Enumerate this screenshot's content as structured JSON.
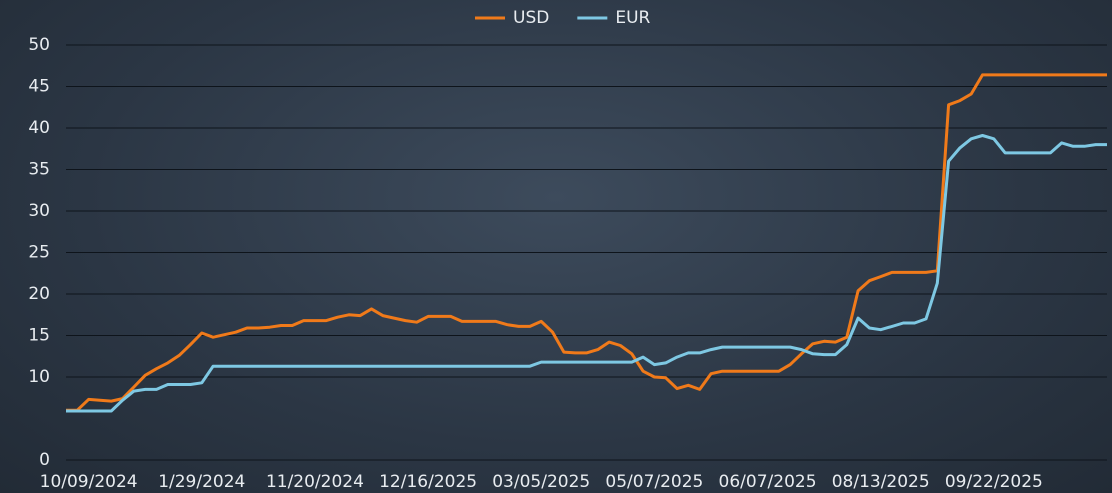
{
  "chart_data": {
    "type": "line",
    "categories": [
      null,
      null,
      "10/09/2024",
      null,
      null,
      null,
      null,
      null,
      null,
      null,
      null,
      null,
      "1/29/2024",
      null,
      null,
      null,
      null,
      null,
      null,
      null,
      null,
      null,
      "11/20/2024",
      null,
      null,
      null,
      null,
      null,
      null,
      null,
      null,
      null,
      "12/16/2025",
      null,
      null,
      null,
      null,
      null,
      null,
      null,
      null,
      null,
      "03/05/2025",
      null,
      null,
      null,
      null,
      null,
      null,
      null,
      null,
      null,
      "05/07/2025",
      null,
      null,
      null,
      null,
      null,
      null,
      null,
      null,
      null,
      "06/07/2025",
      null,
      null,
      null,
      null,
      null,
      null,
      null,
      null,
      null,
      "08/13/2025",
      null,
      null,
      null,
      null,
      null,
      null,
      null,
      null,
      null,
      "09/22/2025",
      null,
      null,
      null,
      null,
      null,
      null,
      null,
      null,
      null,
      null
    ],
    "series": [
      {
        "name": "USD",
        "color": "#f07a1a",
        "values": [
          6,
          6,
          7.3,
          7.2,
          7.1,
          7.4,
          8.8,
          10.2,
          11,
          11.7,
          12.6,
          13.9,
          15.3,
          14.8,
          15.1,
          15.4,
          15.9,
          15.9,
          16,
          16.2,
          16.2,
          16.8,
          16.8,
          16.8,
          17.2,
          17.5,
          17.4,
          18.2,
          17.4,
          17.1,
          16.8,
          16.6,
          17.3,
          17.3,
          17.3,
          16.7,
          16.7,
          16.7,
          16.7,
          16.3,
          16.1,
          16.1,
          16.7,
          15.4,
          13,
          12.9,
          12.9,
          13.3,
          14.2,
          13.8,
          12.8,
          10.7,
          10,
          9.9,
          8.6,
          9,
          8.5,
          10.4,
          10.7,
          10.7,
          10.7,
          10.7,
          10.7,
          10.7,
          11.5,
          12.8,
          14,
          14.3,
          14.2,
          14.8,
          20.4,
          21.6,
          22.1,
          22.6,
          22.6,
          22.6,
          22.6,
          22.8,
          42.8,
          43.3,
          44.1,
          46.4,
          46.4,
          46.4,
          46.4,
          46.4,
          46.4,
          46.4,
          46.4,
          46.4,
          46.4,
          46.4,
          46.4
        ]
      },
      {
        "name": "EUR",
        "color": "#7ec8e3",
        "values": [
          5.9,
          5.9,
          5.9,
          5.9,
          5.9,
          7.2,
          8.3,
          8.5,
          8.5,
          9.1,
          9.1,
          9.1,
          9.3,
          11.3,
          11.3,
          11.3,
          11.3,
          11.3,
          11.3,
          11.3,
          11.3,
          11.3,
          11.3,
          11.3,
          11.3,
          11.3,
          11.3,
          11.3,
          11.3,
          11.3,
          11.3,
          11.3,
          11.3,
          11.3,
          11.3,
          11.3,
          11.3,
          11.3,
          11.3,
          11.3,
          11.3,
          11.3,
          11.8,
          11.8,
          11.8,
          11.8,
          11.8,
          11.8,
          11.8,
          11.8,
          11.8,
          12.4,
          11.5,
          11.7,
          12.4,
          12.9,
          12.9,
          13.3,
          13.6,
          13.6,
          13.6,
          13.6,
          13.6,
          13.6,
          13.6,
          13.3,
          12.8,
          12.7,
          12.7,
          13.9,
          17.1,
          15.9,
          15.7,
          16.1,
          16.5,
          16.5,
          17,
          21.3,
          36,
          37.6,
          38.7,
          39.1,
          38.7,
          37,
          37,
          37,
          37,
          37,
          38.2,
          37.8,
          37.8,
          38,
          38
        ]
      }
    ],
    "ylim": [
      0,
      50
    ],
    "yticks": [
      0,
      10,
      15,
      20,
      25,
      30,
      35,
      40,
      45,
      50
    ],
    "grid": true,
    "legend": "top"
  }
}
